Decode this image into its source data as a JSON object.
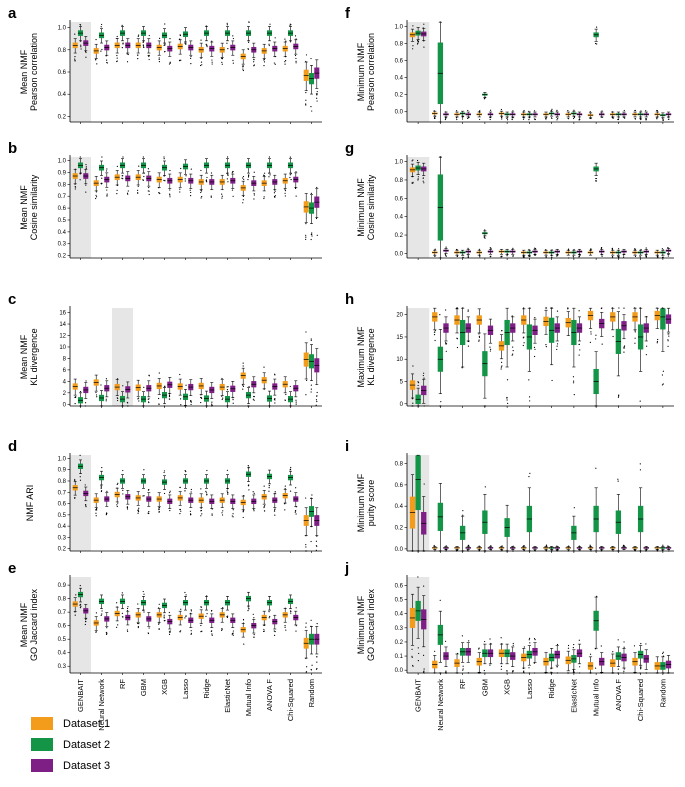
{
  "colors": {
    "Dataset 1": "#f39c1b",
    "Dataset 2": "#139447",
    "Dataset 3": "#7e1f86",
    "highlight": "#e6e6e6",
    "axis": "#000000"
  },
  "categories": [
    "GENBAIT",
    "Neural Network",
    "RF",
    "GBM",
    "XGB",
    "Lasso",
    "Ridge",
    "ElasticNet",
    "Mutual Info",
    "ANOVA F",
    "Chi-Squared",
    "Random"
  ],
  "legend": [
    "Dataset 1",
    "Dataset 2",
    "Dataset 3"
  ],
  "chart_data": [
    {
      "id": "a",
      "type": "box",
      "ylabel": [
        "Mean NMF",
        "Pearson correlation"
      ],
      "yticks": [
        "0.2",
        "0.4",
        "0.6",
        "0.8",
        "1.0"
      ],
      "ylim": [
        0.15,
        1.05
      ],
      "highlight": [
        "GENBAIT"
      ],
      "series": [
        {
          "name": "Dataset 1",
          "values": [
            0.84,
            0.79,
            0.84,
            0.84,
            0.82,
            0.83,
            0.8,
            0.8,
            0.74,
            0.79,
            0.81,
            0.57
          ]
        },
        {
          "name": "Dataset 2",
          "values": [
            0.95,
            0.93,
            0.95,
            0.95,
            0.93,
            0.94,
            0.95,
            0.95,
            0.95,
            0.95,
            0.95,
            0.54
          ]
        },
        {
          "name": "Dataset 3",
          "values": [
            0.86,
            0.82,
            0.84,
            0.84,
            0.81,
            0.82,
            0.81,
            0.82,
            0.8,
            0.81,
            0.83,
            0.59
          ]
        }
      ]
    },
    {
      "id": "b",
      "type": "box",
      "ylabel": [
        "Mean NMF",
        "Cosine similarity"
      ],
      "yticks": [
        "0.2",
        "0.3",
        "0.4",
        "0.5",
        "0.6",
        "0.7",
        "0.8",
        "0.9",
        "1.0"
      ],
      "ylim": [
        0.18,
        1.03
      ],
      "highlight": [
        "GENBAIT"
      ],
      "series": [
        {
          "name": "Dataset 1",
          "values": [
            0.87,
            0.81,
            0.86,
            0.86,
            0.84,
            0.84,
            0.82,
            0.82,
            0.77,
            0.81,
            0.83,
            0.61
          ]
        },
        {
          "name": "Dataset 2",
          "values": [
            0.96,
            0.94,
            0.96,
            0.96,
            0.94,
            0.95,
            0.96,
            0.96,
            0.96,
            0.96,
            0.96,
            0.6
          ]
        },
        {
          "name": "Dataset 3",
          "values": [
            0.87,
            0.84,
            0.85,
            0.85,
            0.83,
            0.83,
            0.82,
            0.83,
            0.81,
            0.82,
            0.84,
            0.65
          ]
        }
      ]
    },
    {
      "id": "c",
      "type": "box",
      "ylabel": [
        "Mean NMF",
        "KL divergence"
      ],
      "yticks": [
        "0",
        "2",
        "4",
        "6",
        "8",
        "10",
        "12",
        "14",
        "16"
      ],
      "ylim": [
        -0.3,
        16.8
      ],
      "highlight": [
        "RF"
      ],
      "series": [
        {
          "name": "Dataset 1",
          "values": [
            3.1,
            3.8,
            3.0,
            2.9,
            3.2,
            3.1,
            3.2,
            3.0,
            5.0,
            4.2,
            3.5,
            7.8
          ]
        },
        {
          "name": "Dataset 2",
          "values": [
            0.7,
            1.1,
            0.9,
            0.9,
            1.6,
            1.3,
            1.0,
            0.9,
            1.6,
            1.0,
            0.9,
            7.5
          ]
        },
        {
          "name": "Dataset 3",
          "values": [
            2.5,
            2.8,
            2.6,
            2.8,
            3.4,
            3.0,
            2.5,
            2.7,
            3.5,
            3.1,
            2.8,
            6.8
          ]
        }
      ]
    },
    {
      "id": "d",
      "type": "box",
      "ylabel": [
        "NMF ARI"
      ],
      "yticks": [
        "0.2",
        "0.3",
        "0.4",
        "0.5",
        "0.6",
        "0.7",
        "0.8",
        "0.9",
        "1.0"
      ],
      "ylim": [
        0.18,
        1.03
      ],
      "highlight": [
        "GENBAIT"
      ],
      "series": [
        {
          "name": "Dataset 1",
          "values": [
            0.74,
            0.63,
            0.68,
            0.65,
            0.64,
            0.65,
            0.63,
            0.63,
            0.61,
            0.66,
            0.67,
            0.45
          ]
        },
        {
          "name": "Dataset 2",
          "values": [
            0.93,
            0.83,
            0.8,
            0.8,
            0.79,
            0.8,
            0.8,
            0.8,
            0.86,
            0.84,
            0.83,
            0.53
          ]
        },
        {
          "name": "Dataset 3",
          "values": [
            0.69,
            0.64,
            0.66,
            0.64,
            0.62,
            0.63,
            0.62,
            0.62,
            0.62,
            0.63,
            0.64,
            0.45
          ]
        }
      ]
    },
    {
      "id": "e",
      "type": "box",
      "ylabel": [
        "Mean NMF",
        "GO Jaccard index"
      ],
      "yticks": [
        "0.3",
        "0.4",
        "0.5",
        "0.6",
        "0.7",
        "0.8",
        "0.9"
      ],
      "ylim": [
        0.25,
        0.96
      ],
      "highlight": [
        "GENBAIT"
      ],
      "series": [
        {
          "name": "Dataset 1",
          "values": [
            0.76,
            0.62,
            0.69,
            0.68,
            0.68,
            0.66,
            0.67,
            0.68,
            0.57,
            0.66,
            0.68,
            0.47
          ]
        },
        {
          "name": "Dataset 2",
          "values": [
            0.83,
            0.78,
            0.78,
            0.77,
            0.75,
            0.77,
            0.77,
            0.77,
            0.8,
            0.77,
            0.78,
            0.5
          ]
        },
        {
          "name": "Dataset 3",
          "values": [
            0.71,
            0.65,
            0.66,
            0.65,
            0.63,
            0.64,
            0.64,
            0.64,
            0.6,
            0.63,
            0.66,
            0.5
          ]
        }
      ]
    },
    {
      "id": "f",
      "type": "box",
      "ylabel": [
        "Minimum NMF",
        "Pearson correlation"
      ],
      "yticks": [
        "0.0",
        "0.2",
        "0.4",
        "0.6",
        "0.8",
        "1.0"
      ],
      "ylim": [
        -0.12,
        1.05
      ],
      "highlight": [
        "GENBAIT"
      ],
      "series": [
        {
          "name": "Dataset 1",
          "values": [
            0.9,
            -0.02,
            -0.03,
            -0.03,
            -0.02,
            -0.03,
            -0.03,
            -0.03,
            -0.04,
            -0.03,
            -0.03,
            -0.03
          ]
        },
        {
          "name": "Dataset 2",
          "values": [
            0.92,
            0.45,
            -0.02,
            0.2,
            -0.03,
            -0.03,
            -0.02,
            -0.02,
            0.9,
            -0.03,
            -0.03,
            -0.04
          ]
        },
        {
          "name": "Dataset 3",
          "values": [
            0.91,
            -0.03,
            -0.03,
            -0.03,
            -0.03,
            -0.03,
            -0.03,
            -0.03,
            -0.03,
            -0.03,
            -0.03,
            -0.03
          ]
        }
      ]
    },
    {
      "id": "g",
      "type": "box",
      "ylabel": [
        "Minimum NMF",
        "Cosine similarity"
      ],
      "yticks": [
        "0.0",
        "0.2",
        "0.4",
        "0.6",
        "0.8",
        "1.0"
      ],
      "ylim": [
        -0.05,
        1.05
      ],
      "highlight": [
        "GENBAIT"
      ],
      "series": [
        {
          "name": "Dataset 1",
          "values": [
            0.91,
            0.01,
            0.01,
            0.01,
            0.02,
            0.01,
            0.01,
            0.01,
            0.01,
            0.01,
            0.01,
            0.01
          ]
        },
        {
          "name": "Dataset 2",
          "values": [
            0.93,
            0.5,
            0.01,
            0.22,
            0.02,
            0.01,
            0.01,
            0.01,
            0.92,
            0.01,
            0.01,
            0.01
          ]
        },
        {
          "name": "Dataset 3",
          "values": [
            0.92,
            0.03,
            0.02,
            0.02,
            0.02,
            0.02,
            0.02,
            0.02,
            0.02,
            0.02,
            0.02,
            0.03
          ]
        }
      ]
    },
    {
      "id": "h",
      "type": "box",
      "ylabel": [
        "Maximum NMF",
        "KL divergence"
      ],
      "yticks": [
        "0",
        "5",
        "10",
        "15",
        "20"
      ],
      "ylim": [
        -0.5,
        21.5
      ],
      "highlight": [
        "GENBAIT"
      ],
      "series": [
        {
          "name": "Dataset 1",
          "values": [
            4.2,
            19.5,
            18.8,
            18.8,
            13.0,
            18.8,
            18.5,
            18.2,
            19.8,
            19.5,
            19.5,
            19.8
          ]
        },
        {
          "name": "Dataset 2",
          "values": [
            1.0,
            10.0,
            16.0,
            9.0,
            16.0,
            15.0,
            16.5,
            16.0,
            5.0,
            14.0,
            15.0,
            19.5
          ]
        },
        {
          "name": "Dataset 3",
          "values": [
            3.0,
            17.0,
            17.0,
            16.5,
            17.0,
            16.5,
            17.0,
            17.0,
            18.0,
            17.5,
            17.0,
            19.0
          ]
        }
      ]
    },
    {
      "id": "i",
      "type": "box",
      "ylabel": [
        "Minimum NMF",
        "purity score"
      ],
      "yticks": [
        "0.0",
        "0.2",
        "0.4",
        "0.6",
        "0.8"
      ],
      "ylim": [
        -0.02,
        0.88
      ],
      "highlight": [
        "GENBAIT"
      ],
      "series": [
        {
          "name": "Dataset 1",
          "values": [
            0.34,
            0.01,
            0.01,
            0.01,
            0.01,
            0.01,
            0.01,
            0.01,
            0.01,
            0.01,
            0.01,
            0.01
          ]
        },
        {
          "name": "Dataset 2",
          "values": [
            0.65,
            0.3,
            0.15,
            0.25,
            0.2,
            0.28,
            0.01,
            0.15,
            0.28,
            0.25,
            0.28,
            0.01
          ]
        },
        {
          "name": "Dataset 3",
          "values": [
            0.24,
            0.01,
            0.01,
            0.01,
            0.01,
            0.01,
            0.01,
            0.01,
            0.01,
            0.01,
            0.01,
            0.01
          ]
        }
      ]
    },
    {
      "id": "j",
      "type": "box",
      "ylabel": [
        "Minimum NMF",
        "GO Jaccard index"
      ],
      "yticks": [
        "0.0",
        "0.1",
        "0.2",
        "0.3",
        "0.4",
        "0.5",
        "0.6"
      ],
      "ylim": [
        -0.02,
        0.66
      ],
      "highlight": [
        "GENBAIT"
      ],
      "series": [
        {
          "name": "Dataset 1",
          "values": [
            0.37,
            0.04,
            0.05,
            0.06,
            0.12,
            0.09,
            0.06,
            0.07,
            0.03,
            0.05,
            0.06,
            0.03
          ]
        },
        {
          "name": "Dataset 2",
          "values": [
            0.42,
            0.25,
            0.13,
            0.12,
            0.12,
            0.11,
            0.09,
            0.08,
            0.35,
            0.1,
            0.11,
            0.03
          ]
        },
        {
          "name": "Dataset 3",
          "values": [
            0.36,
            0.1,
            0.13,
            0.12,
            0.1,
            0.13,
            0.11,
            0.12,
            0.06,
            0.09,
            0.08,
            0.04
          ]
        }
      ]
    }
  ]
}
